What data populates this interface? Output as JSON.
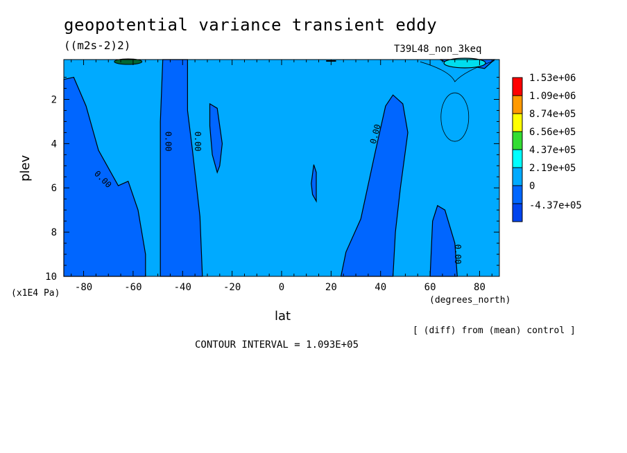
{
  "chart_data": {
    "type": "contour",
    "title": "geopotential variance transient eddy",
    "units": "((m2s-2)2)",
    "run_label": "T39L48_non_3keq",
    "xlabel": "lat",
    "x_units": "(degrees_north)",
    "ylabel": "plev",
    "y_units": "(x1E4 Pa)",
    "xlim": [
      -88,
      88
    ],
    "ylim": [
      10,
      0.2
    ],
    "x_ticks": [
      -80,
      -60,
      -40,
      -20,
      0,
      20,
      40,
      60,
      80
    ],
    "x_tick_labels": [
      "-80",
      "-60",
      "-40",
      "-20",
      "0",
      "20",
      "40",
      "60",
      "80"
    ],
    "y_ticks": [
      2,
      4,
      6,
      8,
      10
    ],
    "y_tick_labels": [
      "2",
      "4",
      "6",
      "8",
      "10"
    ],
    "legend": {
      "position": "right",
      "levels": [
        "1.53e+06",
        "1.09e+06",
        "8.74e+05",
        "6.56e+05",
        "4.37e+05",
        "2.19e+05",
        "0",
        "-4.37e+05"
      ],
      "colors": [
        "#ff0000",
        "#ff9900",
        "#ffff00",
        "#33dd33",
        "#00ffff",
        "#00aaff",
        "#0066ff",
        "#0044ee"
      ]
    },
    "contour_labels": [
      "0.00",
      "0.00",
      "0.00",
      "0.00",
      "0.00",
      "0.00"
    ],
    "note": "[ (diff) from (mean) control ]",
    "contour_interval": "CONTOUR INTERVAL = 1.093E+05",
    "background_color": "#00aaff",
    "negative_region_color": "#0066ff",
    "regions": [
      {
        "name": "south-polar-low",
        "points": [
          [
            -88,
            1.1
          ],
          [
            -84,
            1.0
          ],
          [
            -79,
            2.3
          ],
          [
            -74,
            4.3
          ],
          [
            -66,
            5.9
          ],
          [
            -62,
            5.7
          ],
          [
            -58,
            7.0
          ],
          [
            -55,
            9.0
          ],
          [
            -55,
            10
          ],
          [
            -88,
            10
          ]
        ]
      },
      {
        "name": "column-minus-45",
        "points": [
          [
            -48,
            0.2
          ],
          [
            -38,
            0.2
          ],
          [
            -38,
            2.5
          ],
          [
            -36,
            4.3
          ],
          [
            -33,
            7.3
          ],
          [
            -32,
            10
          ],
          [
            -49,
            10
          ],
          [
            -49,
            3.0
          ]
        ]
      },
      {
        "name": "cell-minus-28",
        "points": [
          [
            -29,
            2.2
          ],
          [
            -26,
            2.4
          ],
          [
            -24,
            4.0
          ],
          [
            -25,
            5.0
          ],
          [
            -26,
            5.3
          ],
          [
            -28,
            4.5
          ],
          [
            -29,
            3.2
          ]
        ]
      },
      {
        "name": "sliver-13",
        "points": [
          [
            13,
            4.95
          ],
          [
            14,
            5.3
          ],
          [
            14,
            6.6
          ],
          [
            12.5,
            6.3
          ],
          [
            12,
            5.8
          ]
        ]
      },
      {
        "name": "tilted-band-45",
        "points": [
          [
            24,
            10
          ],
          [
            26,
            8.9
          ],
          [
            32,
            7.4
          ],
          [
            38,
            4.3
          ],
          [
            42,
            2.3
          ],
          [
            45,
            1.8
          ],
          [
            49,
            2.2
          ],
          [
            51,
            3.5
          ],
          [
            48,
            6.0
          ],
          [
            46,
            8.0
          ],
          [
            45,
            10
          ]
        ]
      },
      {
        "name": "cell-65",
        "points": [
          [
            60,
            10
          ],
          [
            61,
            7.5
          ],
          [
            63,
            6.8
          ],
          [
            66,
            7.0
          ],
          [
            70,
            8.5
          ],
          [
            71,
            10
          ]
        ]
      },
      {
        "name": "north-top-blob",
        "points": [
          [
            64,
            0.2
          ],
          [
            86,
            0.2
          ],
          [
            82,
            0.6
          ],
          [
            74,
            0.45
          ],
          [
            68,
            0.4
          ]
        ]
      }
    ]
  }
}
